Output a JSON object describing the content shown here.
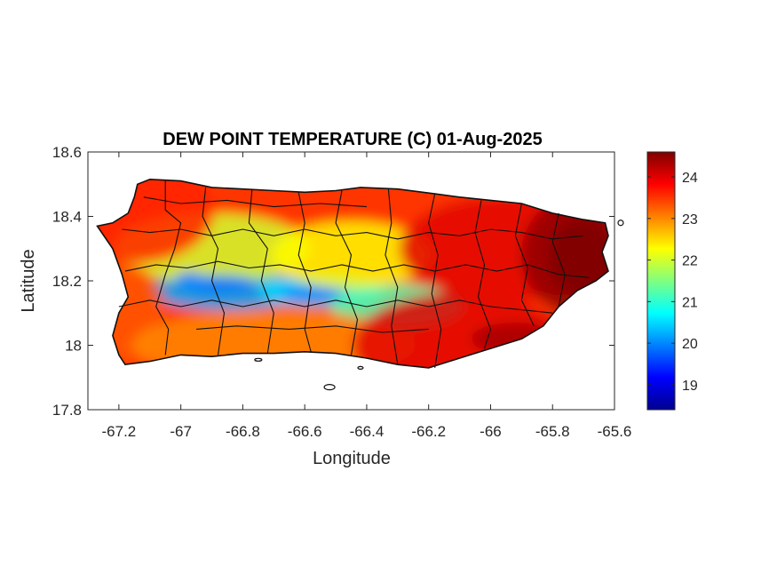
{
  "title": "DEW POINT TEMPERATURE (C) 01-Aug-2025",
  "xlabel": "Longitude",
  "ylabel": "Latitude",
  "x_ticks": [
    "-67.2",
    "-67",
    "-66.8",
    "-66.6",
    "-66.4",
    "-66.2",
    "-66",
    "-65.8",
    "-65.6"
  ],
  "y_ticks": [
    "18.6",
    "18.4",
    "18.2",
    "18",
    "17.8"
  ],
  "colorbar": {
    "ticks": [
      "24",
      "23",
      "22",
      "21",
      "20",
      "19"
    ],
    "colormap": "jet",
    "colors": [
      "#00008f",
      "#0000ff",
      "#00ffff",
      "#ffff00",
      "#ff0000",
      "#800000"
    ]
  },
  "chart_data": {
    "type": "heatmap",
    "title": "DEW POINT TEMPERATURE (C) 01-Aug-2025",
    "xlabel": "Longitude",
    "ylabel": "Latitude",
    "xlim": [
      -67.3,
      -65.6
    ],
    "ylim": [
      17.8,
      18.6
    ],
    "color_range": [
      18.4,
      24.6
    ],
    "region": "Puerto Rico",
    "boundaries": "municipality",
    "value_hotspots": [
      {
        "lon": -66.85,
        "lat": 18.17,
        "value": 20.2
      },
      {
        "lon": -66.55,
        "lat": 18.17,
        "value": 20.5
      },
      {
        "lon": -66.3,
        "lat": 18.12,
        "value": 21.2
      },
      {
        "lon": -66.9,
        "lat": 18.3,
        "value": 22.0
      },
      {
        "lon": -66.45,
        "lat": 18.28,
        "value": 22.3
      },
      {
        "lon": -67.15,
        "lat": 18.42,
        "value": 23.6
      },
      {
        "lon": -67.18,
        "lat": 18.1,
        "value": 23.3
      },
      {
        "lon": -66.7,
        "lat": 18.0,
        "value": 23.0
      },
      {
        "lon": -66.1,
        "lat": 18.0,
        "value": 24.0
      },
      {
        "lon": -65.95,
        "lat": 18.3,
        "value": 24.0
      },
      {
        "lon": -65.7,
        "lat": 18.28,
        "value": 24.5
      }
    ]
  }
}
